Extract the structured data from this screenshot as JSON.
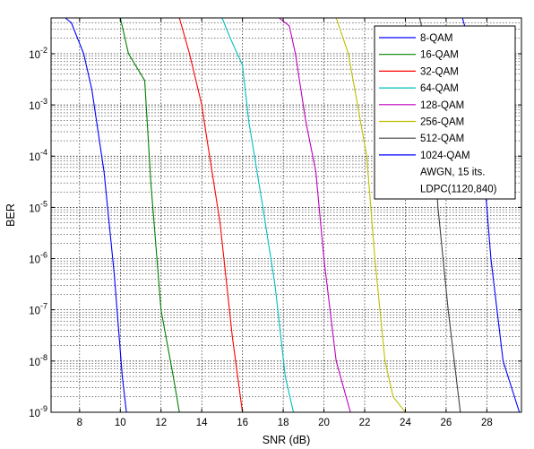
{
  "chart_data": {
    "type": "line",
    "title": "",
    "xlabel": "SNR (dB)",
    "ylabel": "BER",
    "xlim": [
      6.6,
      29.7
    ],
    "ylim": [
      1e-09,
      0.05
    ],
    "yscale": "log",
    "grid": "major and minor",
    "legend_position": "top-right",
    "xticks": [
      8,
      10,
      12,
      14,
      16,
      18,
      20,
      22,
      24,
      26,
      28
    ],
    "xtick_labels": [
      "8",
      "10",
      "12",
      "14",
      "16",
      "18",
      "20",
      "22",
      "24",
      "26",
      "28"
    ],
    "ytick_exponents": [
      -9,
      -8,
      -7,
      -6,
      -5,
      -4,
      -3,
      -2
    ],
    "legend_notes": [
      "AWGN, 15 its.",
      "LDPC(1120,840)"
    ],
    "series": [
      {
        "name": "8-QAM",
        "color": "#0000ff",
        "points": [
          [
            7.3,
            0.05
          ],
          [
            7.6,
            0.04
          ],
          [
            8.2,
            0.01
          ],
          [
            8.6,
            0.002
          ],
          [
            9.2,
            5e-05
          ],
          [
            9.7,
            5e-07
          ],
          [
            10.1,
            5e-09
          ],
          [
            10.3,
            1e-09
          ]
        ]
      },
      {
        "name": "16-QAM",
        "color": "#008000",
        "points": [
          [
            10.0,
            0.05
          ],
          [
            10.4,
            0.01
          ],
          [
            11.2,
            0.003
          ],
          [
            11.5,
            3e-05
          ],
          [
            12.0,
            1e-07
          ],
          [
            12.6,
            5e-09
          ],
          [
            12.9,
            1e-09
          ]
        ]
      },
      {
        "name": "32-QAM",
        "color": "#ff0000",
        "points": [
          [
            12.9,
            0.05
          ],
          [
            13.4,
            0.01
          ],
          [
            14.0,
            0.001
          ],
          [
            14.2,
            0.0003
          ],
          [
            14.9,
            5e-06
          ],
          [
            15.5,
            3e-08
          ],
          [
            16.0,
            1e-09
          ]
        ]
      },
      {
        "name": "64-QAM",
        "color": "#00bfbf",
        "points": [
          [
            15.0,
            0.05
          ],
          [
            15.4,
            0.02
          ],
          [
            16.0,
            0.006
          ],
          [
            16.3,
            0.0005
          ],
          [
            17.0,
            1e-05
          ],
          [
            17.6,
            3e-07
          ],
          [
            18.1,
            5e-09
          ],
          [
            18.5,
            1e-09
          ]
        ]
      },
      {
        "name": "128-QAM",
        "color": "#bf00bf",
        "points": [
          [
            17.8,
            0.05
          ],
          [
            18.3,
            0.035
          ],
          [
            18.6,
            0.01
          ],
          [
            19.1,
            0.0005
          ],
          [
            19.6,
            5e-05
          ],
          [
            20.0,
            1e-06
          ],
          [
            20.6,
            1e-08
          ],
          [
            21.3,
            1e-09
          ]
        ]
      },
      {
        "name": "256-QAM",
        "color": "#bfbf00",
        "points": [
          [
            20.6,
            0.05
          ],
          [
            21.2,
            0.01
          ],
          [
            22.1,
            0.0001
          ],
          [
            22.5,
            1e-06
          ],
          [
            23.0,
            1e-08
          ],
          [
            23.4,
            2e-09
          ],
          [
            24.0,
            1e-09
          ]
        ]
      },
      {
        "name": "512-QAM",
        "color": "#404040",
        "points": [
          [
            24.7,
            0.05
          ],
          [
            25.1,
            0.01
          ],
          [
            25.6,
            1e-05
          ],
          [
            26.1,
            1e-07
          ],
          [
            26.7,
            1e-09
          ]
        ]
      },
      {
        "name": "1024-QAM",
        "color": "#0000ff",
        "points": [
          [
            26.8,
            0.05
          ],
          [
            27.3,
            0.01
          ],
          [
            27.8,
            0.0001
          ],
          [
            28.2,
            1e-06
          ],
          [
            28.8,
            1e-08
          ],
          [
            29.6,
            1e-09
          ]
        ]
      }
    ]
  }
}
